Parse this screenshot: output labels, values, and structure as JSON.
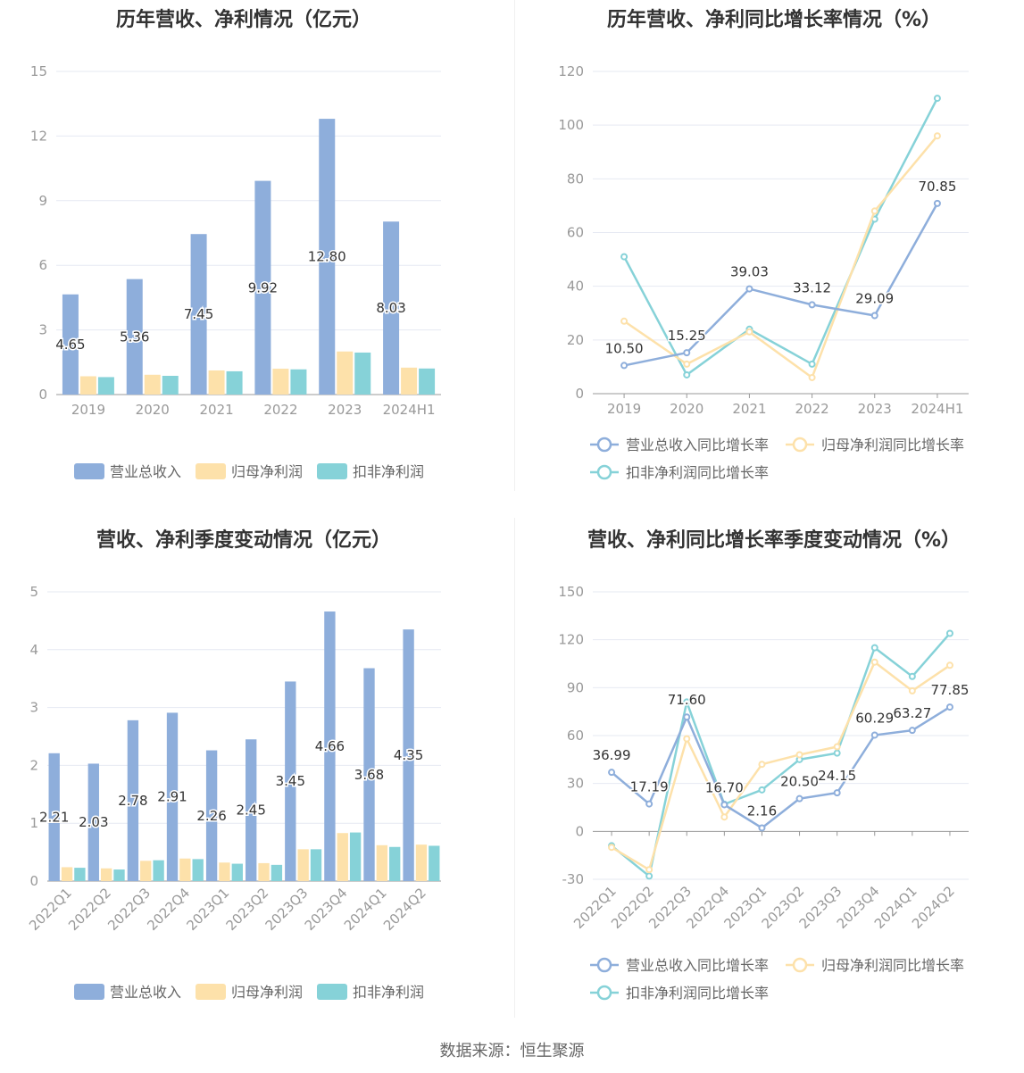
{
  "colors": {
    "revenue": "#8eaedb",
    "net_profit": "#fde1aa",
    "deducted_profit": "#86d2d8",
    "axis": "#999999",
    "grid": "#e6e9f2",
    "label": "#333333"
  },
  "footer": {
    "source": "数据来源：恒生聚源"
  },
  "chart_data": [
    {
      "id": "annual-values",
      "type": "bar",
      "title": "历年营收、净利情况（亿元）",
      "categories": [
        "2019",
        "2020",
        "2021",
        "2022",
        "2023",
        "2024H1"
      ],
      "ylim": [
        0,
        15
      ],
      "yticks": [
        "0",
        "3",
        "6",
        "9",
        "12",
        "15"
      ],
      "series": [
        {
          "name": "营业总收入",
          "color": "#8eaedb",
          "values": [
            4.65,
            5.36,
            7.45,
            9.92,
            12.8,
            8.03
          ],
          "labels": [
            "4.65",
            "5.36",
            "7.45",
            "9.92",
            "12.80",
            "8.03"
          ]
        },
        {
          "name": "归母净利润",
          "color": "#fde1aa",
          "values": [
            0.85,
            0.92,
            1.12,
            1.2,
            2.0,
            1.25
          ]
        },
        {
          "name": "扣非净利润",
          "color": "#86d2d8",
          "values": [
            0.81,
            0.87,
            1.08,
            1.17,
            1.95,
            1.21
          ]
        }
      ]
    },
    {
      "id": "annual-growth",
      "type": "line",
      "title": "历年营收、净利同比增长率情况（%）",
      "categories": [
        "2019",
        "2020",
        "2021",
        "2022",
        "2023",
        "2024H1"
      ],
      "ylim": [
        0,
        120
      ],
      "yticks": [
        "0",
        "20",
        "40",
        "60",
        "80",
        "100",
        "120"
      ],
      "series": [
        {
          "name": "营业总收入同比增长率",
          "color": "#8eaedb",
          "values": [
            10.5,
            15.25,
            39.03,
            33.12,
            29.09,
            70.85
          ],
          "labels": [
            "10.50",
            "15.25",
            "39.03",
            "33.12",
            "29.09",
            "70.85"
          ]
        },
        {
          "name": "归母净利润同比增长率",
          "color": "#fde1aa",
          "values": [
            27,
            11,
            23,
            6,
            68,
            96
          ]
        },
        {
          "name": "扣非净利润同比增长率",
          "color": "#86d2d8",
          "values": [
            51,
            7,
            24,
            11,
            65,
            110
          ]
        }
      ]
    },
    {
      "id": "quarterly-values",
      "type": "bar",
      "title": "营收、净利季度变动情况（亿元）",
      "categories": [
        "2022Q1",
        "2022Q2",
        "2022Q3",
        "2022Q4",
        "2023Q1",
        "2023Q2",
        "2023Q3",
        "2023Q4",
        "2024Q1",
        "2024Q2"
      ],
      "ylim": [
        0,
        5
      ],
      "yticks": [
        "0",
        "1",
        "2",
        "3",
        "4",
        "5"
      ],
      "series": [
        {
          "name": "营业总收入",
          "color": "#8eaedb",
          "values": [
            2.21,
            2.03,
            2.78,
            2.91,
            2.26,
            2.45,
            3.45,
            4.66,
            3.68,
            4.35
          ],
          "labels": [
            "2.21",
            "2.03",
            "2.78",
            "2.91",
            "2.26",
            "2.45",
            "3.45",
            "4.66",
            "3.68",
            "4.35"
          ]
        },
        {
          "name": "归母净利润",
          "color": "#fde1aa",
          "values": [
            0.24,
            0.22,
            0.35,
            0.39,
            0.32,
            0.31,
            0.55,
            0.83,
            0.62,
            0.63
          ]
        },
        {
          "name": "扣非净利润",
          "color": "#86d2d8",
          "values": [
            0.23,
            0.2,
            0.36,
            0.38,
            0.3,
            0.28,
            0.55,
            0.84,
            0.59,
            0.61
          ]
        }
      ]
    },
    {
      "id": "quarterly-growth",
      "type": "line",
      "title": "营收、净利同比增长率季度变动情况（%）",
      "categories": [
        "2022Q1",
        "2022Q2",
        "2022Q3",
        "2022Q4",
        "2023Q1",
        "2023Q2",
        "2023Q3",
        "2023Q4",
        "2024Q1",
        "2024Q2"
      ],
      "ylim": [
        -30,
        150
      ],
      "yticks": [
        "-30",
        "0",
        "30",
        "60",
        "90",
        "120",
        "150"
      ],
      "series": [
        {
          "name": "营业总收入同比增长率",
          "color": "#8eaedb",
          "values": [
            36.99,
            17.19,
            71.6,
            16.7,
            2.16,
            20.5,
            24.15,
            60.29,
            63.27,
            77.85
          ],
          "labels": [
            "36.99",
            "17.19",
            "71.60",
            "16.70",
            "2.16",
            "20.50",
            "24.15",
            "60.29",
            "63.27",
            "77.85"
          ]
        },
        {
          "name": "归母净利润同比增长率",
          "color": "#fde1aa",
          "values": [
            -10,
            -24,
            58,
            9,
            42,
            48,
            53,
            106,
            88,
            104
          ]
        },
        {
          "name": "扣非净利润同比增长率",
          "color": "#86d2d8",
          "values": [
            -9,
            -28,
            81,
            17,
            26,
            45,
            49,
            115,
            97,
            124
          ]
        }
      ]
    }
  ]
}
